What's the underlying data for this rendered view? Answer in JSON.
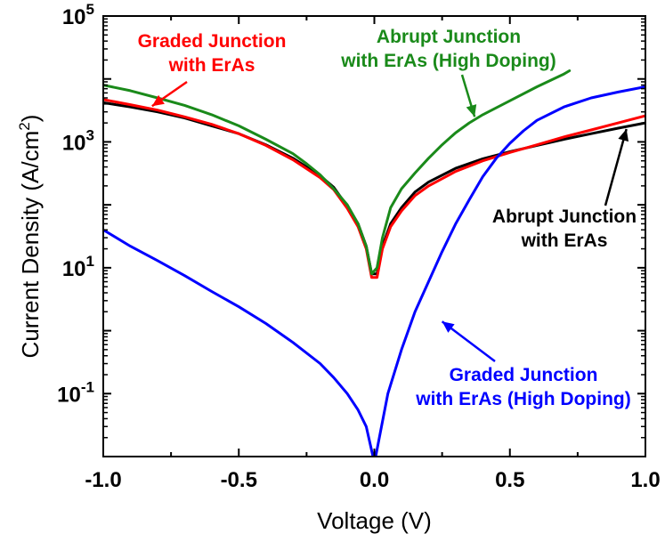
{
  "chart_data": {
    "type": "line",
    "xlabel": "Voltage (V)",
    "ylabel": "Current Density (A/cm",
    "ylabel_sup": "2",
    "ylabel_close": ")",
    "xlim": [
      -1.0,
      1.0
    ],
    "ylim": [
      0.01,
      100000
    ],
    "yscale": "log",
    "grid": false,
    "x_ticks": [
      -1.0,
      -0.5,
      0.0,
      0.5,
      1.0
    ],
    "x_tick_labels": [
      "-1.0",
      "-0.5",
      "0.0",
      "0.5",
      "1.0"
    ],
    "y_ticks": [
      {
        "value": 100000,
        "base": "10",
        "exp": "5"
      },
      {
        "value": 1000,
        "base": "10",
        "exp": "3"
      },
      {
        "value": 10,
        "base": "10",
        "exp": "1"
      },
      {
        "value": 0.1,
        "base": "10",
        "exp": "-1"
      }
    ],
    "series": [
      {
        "name": "Abrupt Junction with ErAs",
        "color": "#000000",
        "x": [
          -1.0,
          -0.9,
          -0.8,
          -0.7,
          -0.6,
          -0.5,
          -0.4,
          -0.3,
          -0.2,
          -0.15,
          -0.1,
          -0.06,
          -0.03,
          -0.01,
          0.01,
          0.03,
          0.06,
          0.1,
          0.15,
          0.2,
          0.3,
          0.4,
          0.5,
          0.6,
          0.7,
          0.8,
          0.9,
          1.0
        ],
        "y": [
          4200,
          3600,
          3000,
          2400,
          1800,
          1350,
          900,
          550,
          290,
          190,
          95,
          50,
          22,
          8,
          8,
          22,
          50,
          90,
          160,
          230,
          380,
          540,
          700,
          880,
          1100,
          1350,
          1650,
          2000
        ]
      },
      {
        "name": "Graded Junction with ErAs",
        "color": "#ff0000",
        "x": [
          -1.0,
          -0.9,
          -0.8,
          -0.7,
          -0.6,
          -0.5,
          -0.4,
          -0.3,
          -0.2,
          -0.15,
          -0.1,
          -0.06,
          -0.03,
          -0.01,
          0.01,
          0.03,
          0.06,
          0.1,
          0.15,
          0.2,
          0.3,
          0.4,
          0.5,
          0.6,
          0.7,
          0.8,
          0.9,
          1.0
        ],
        "y": [
          4700,
          3900,
          3200,
          2500,
          1900,
          1350,
          880,
          520,
          270,
          175,
          88,
          45,
          20,
          7,
          7,
          20,
          45,
          80,
          140,
          200,
          340,
          500,
          680,
          900,
          1200,
          1550,
          2000,
          2600
        ]
      },
      {
        "name": "Abrupt Junction with ErAs (High Doping)",
        "color": "#1a8a1a",
        "x": [
          -1.0,
          -0.9,
          -0.8,
          -0.7,
          -0.6,
          -0.5,
          -0.4,
          -0.3,
          -0.25,
          -0.2,
          -0.15,
          -0.1,
          -0.06,
          -0.03,
          -0.01,
          0.01,
          0.03,
          0.06,
          0.1,
          0.15,
          0.2,
          0.25,
          0.3,
          0.35,
          0.4,
          0.5,
          0.6,
          0.7,
          0.72
        ],
        "y": [
          8000,
          6500,
          5000,
          3800,
          2700,
          1800,
          1100,
          650,
          450,
          300,
          180,
          100,
          50,
          22,
          8,
          10,
          30,
          90,
          180,
          320,
          550,
          900,
          1400,
          2000,
          2700,
          4500,
          7500,
          12000,
          13500
        ]
      },
      {
        "name": "Graded Junction with ErAs (High Doping)",
        "color": "#0000ff",
        "x": [
          -1.0,
          -0.9,
          -0.8,
          -0.7,
          -0.6,
          -0.5,
          -0.4,
          -0.3,
          -0.2,
          -0.15,
          -0.1,
          -0.06,
          -0.03,
          -0.005,
          0.005,
          0.05,
          0.1,
          0.15,
          0.2,
          0.25,
          0.3,
          0.35,
          0.4,
          0.45,
          0.5,
          0.55,
          0.6,
          0.7,
          0.8,
          0.9,
          1.0
        ],
        "y": [
          40,
          22,
          13,
          7.5,
          4.2,
          2.4,
          1.3,
          0.65,
          0.3,
          0.18,
          0.1,
          0.055,
          0.03,
          0.01,
          0.01,
          0.1,
          0.5,
          2,
          6,
          18,
          50,
          120,
          280,
          550,
          950,
          1500,
          2200,
          3600,
          5000,
          6200,
          7500
        ]
      }
    ],
    "annotations": [
      {
        "lines": [
          "Graded Junction",
          "with ErAs"
        ],
        "color": "#ff0000",
        "arrow_to": [
          -0.82,
          3700
        ]
      },
      {
        "lines": [
          "Abrupt Junction",
          "with ErAs (High Doping)"
        ],
        "color": "#1a8a1a",
        "arrow_to": [
          0.37,
          2500
        ]
      },
      {
        "lines": [
          "Abrupt Junction",
          "with ErAs"
        ],
        "color": "#000000",
        "arrow_to": [
          0.93,
          1600
        ]
      },
      {
        "lines": [
          "Graded Junction",
          "with ErAs (High Doping)"
        ],
        "color": "#0000ff",
        "arrow_to": [
          0.25,
          1.4
        ]
      }
    ]
  }
}
